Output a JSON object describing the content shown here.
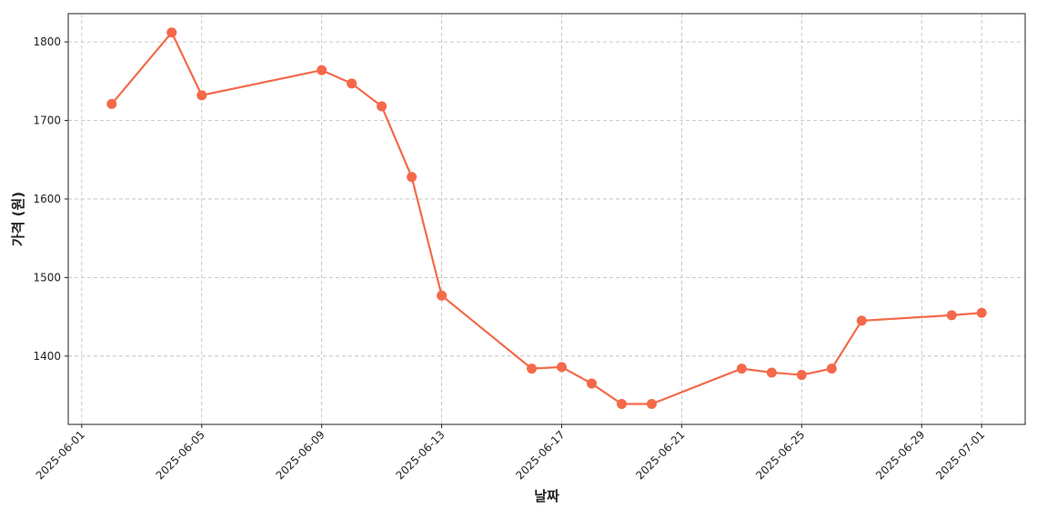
{
  "chart_data": {
    "type": "line",
    "xlabel": "날짜",
    "ylabel": "가격 (원)",
    "x": [
      "2025-06-02",
      "2025-06-04",
      "2025-06-05",
      "2025-06-09",
      "2025-06-10",
      "2025-06-11",
      "2025-06-12",
      "2025-06-13",
      "2025-06-16",
      "2025-06-17",
      "2025-06-18",
      "2025-06-19",
      "2025-06-20",
      "2025-06-23",
      "2025-06-24",
      "2025-06-25",
      "2025-06-26",
      "2025-06-27",
      "2025-06-30",
      "2025-07-01"
    ],
    "values": [
      1721,
      1812,
      1732,
      1764,
      1747,
      1718,
      1628,
      1477,
      1384,
      1386,
      1365,
      1339,
      1339,
      1384,
      1379,
      1376,
      1384,
      1445,
      1452,
      1455
    ],
    "color": "#f4694a",
    "xlim": [
      "2025-05-31T13:12",
      "2025-07-02T10:48"
    ],
    "xticks": [
      "2025-06-01",
      "2025-06-05",
      "2025-06-09",
      "2025-06-13",
      "2025-06-17",
      "2025-06-21",
      "2025-06-25",
      "2025-06-29",
      "2025-07-01"
    ],
    "ylim": [
      1313,
      1836
    ],
    "yticks": [
      1400,
      1500,
      1600,
      1700,
      1800
    ],
    "grid": true
  }
}
